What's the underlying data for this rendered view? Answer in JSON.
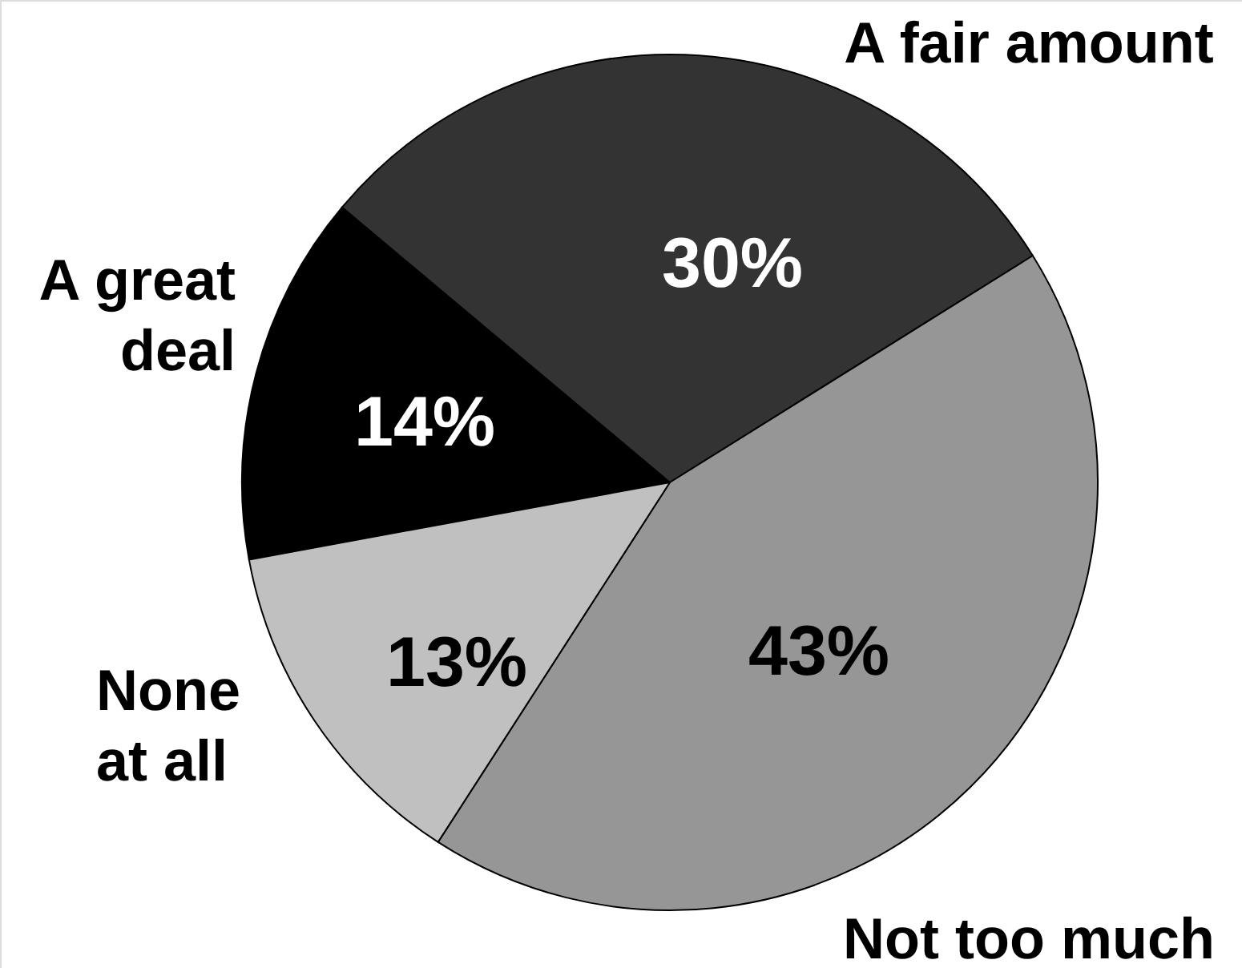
{
  "chart_data": {
    "type": "pie",
    "categories": [
      "A great deal",
      "A fair amount",
      "Not too much",
      "None at all"
    ],
    "values": [
      14,
      30,
      43,
      13
    ],
    "colors": [
      "#000000",
      "#333333",
      "#969696",
      "#c0c0c0"
    ],
    "value_labels": [
      "14%",
      "30%",
      "43%",
      "13%"
    ]
  }
}
